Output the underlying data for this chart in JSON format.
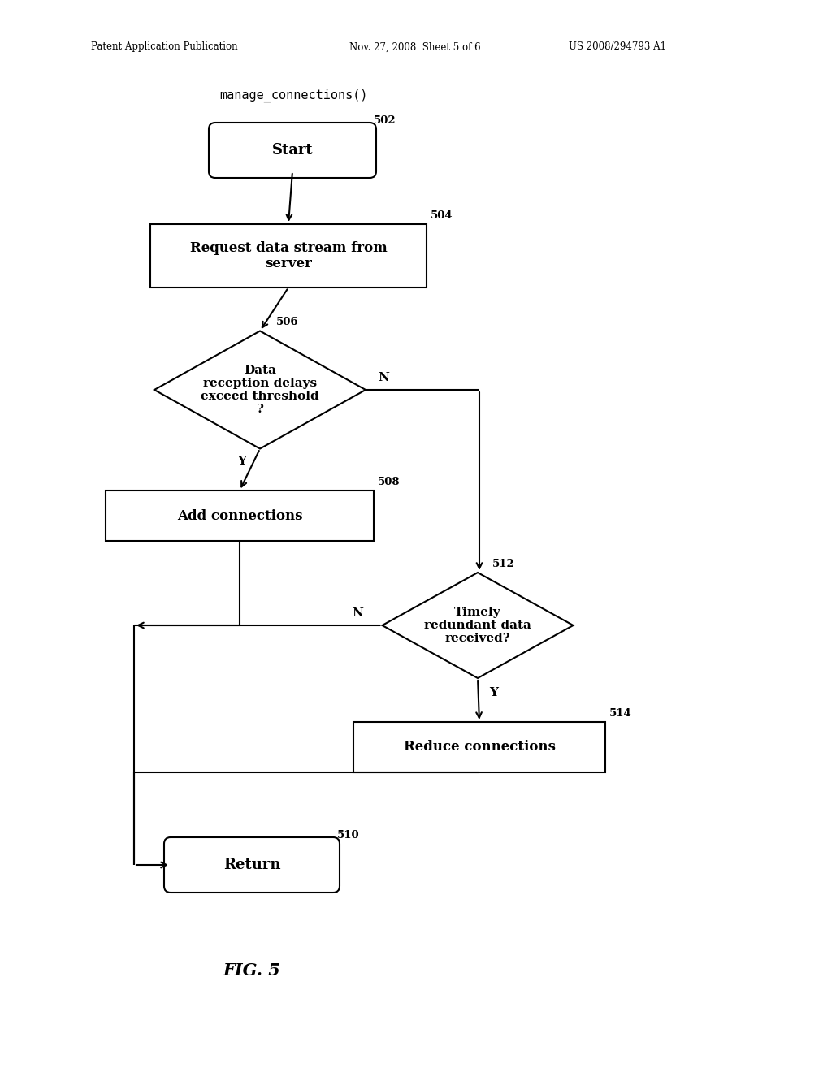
{
  "bg_color": "#ffffff",
  "text_color": "#000000",
  "header_left": "Patent Application Publication",
  "header_mid": "Nov. 27, 2008  Sheet 5 of 6",
  "header_right": "US 2008/294793 A1",
  "func_label": "manage_connections()",
  "fig_label": "FIG. 5",
  "start_label": "Start",
  "start_num": "502",
  "req_label": "Request data stream from\nserver",
  "req_num": "504",
  "dec1_label": "Data\nreception delays\nexceed threshold\n?",
  "dec1_num": "506",
  "add_label": "Add connections",
  "add_num": "508",
  "dec2_label": "Timely\nredundant data\nreceived?",
  "dec2_num": "512",
  "reduce_label": "Reduce connections",
  "reduce_num": "514",
  "return_label": "Return",
  "return_num": "510",
  "lw": 1.5
}
